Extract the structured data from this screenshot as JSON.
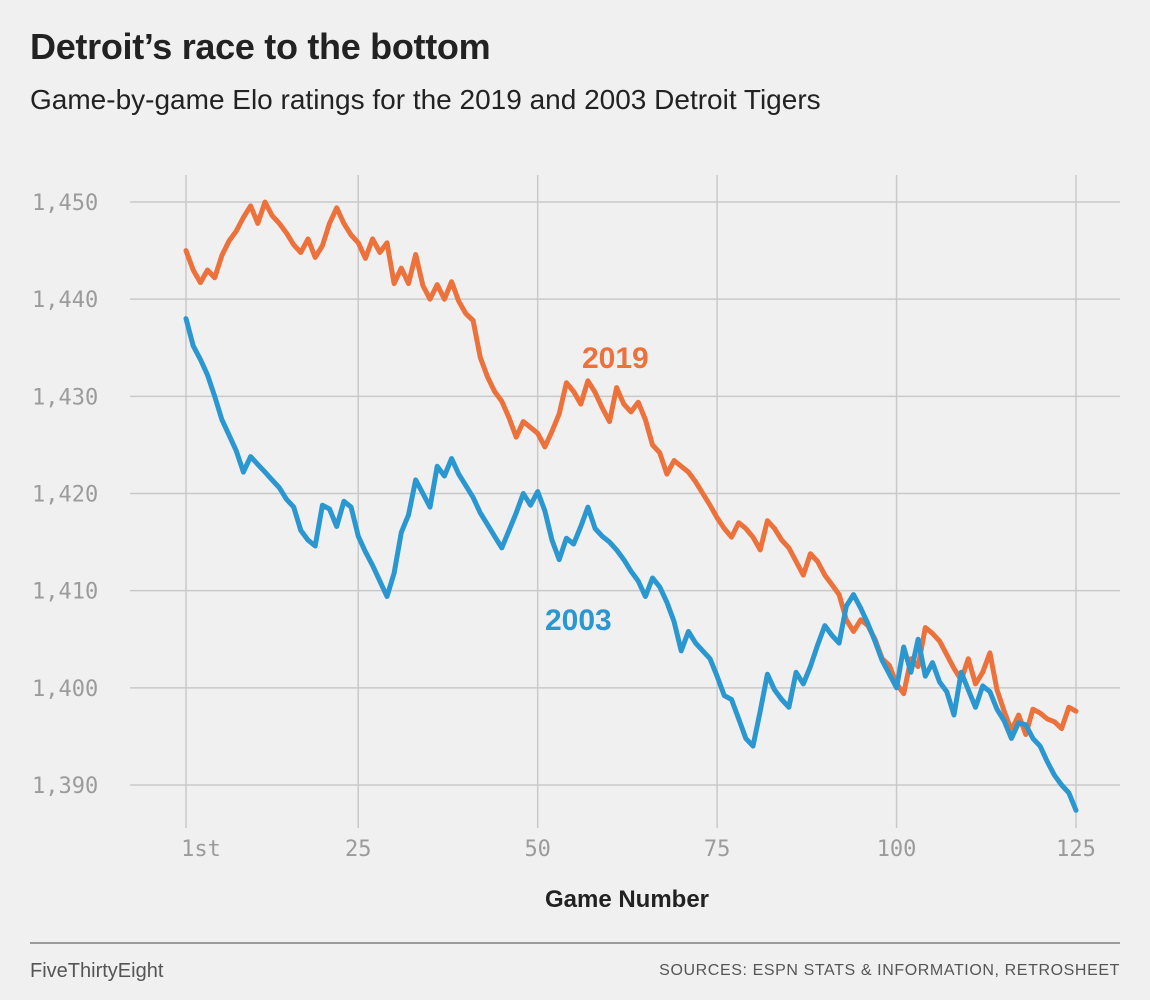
{
  "header": {
    "title": "Detroit’s race to the bottom",
    "subtitle": "Game-by-game Elo ratings for the 2019 and 2003 Detroit Tigers"
  },
  "footer": {
    "brand": "FiveThirtyEight",
    "sources": "SOURCES: ESPN STATS & INFORMATION, RETROSHEET"
  },
  "chart_data": {
    "type": "line",
    "title": "Detroit’s race to the bottom",
    "subtitle": "Game-by-game Elo ratings for the 2019 and 2003 Detroit Tigers",
    "xlabel": "Game Number",
    "ylabel": "",
    "xlim": [
      1,
      125
    ],
    "ylim": [
      1387.5,
      1453
    ],
    "x_ticks": [
      1,
      25,
      50,
      75,
      100,
      125
    ],
    "x_tick_labels": [
      "1st",
      "25",
      "50",
      "75",
      "100",
      "125"
    ],
    "y_ticks": [
      1390,
      1400,
      1410,
      1420,
      1430,
      1440,
      1450
    ],
    "y_tick_labels": [
      "1,390",
      "1,400",
      "1,410",
      "1,420",
      "1,430",
      "1,440",
      "1,450"
    ],
    "grid": true,
    "legend": "direct labels on lines",
    "series": [
      {
        "name": "2019",
        "color": "#ed713a",
        "x": [
          1,
          2,
          3,
          4,
          5,
          6,
          7,
          8,
          9,
          10,
          11,
          12,
          13,
          14,
          15,
          16,
          17,
          18,
          19,
          20,
          21,
          22,
          23,
          24,
          25,
          26,
          27,
          28,
          29,
          30,
          31,
          32,
          33,
          34,
          35,
          36,
          37,
          38,
          39,
          40,
          41,
          42,
          43,
          44,
          45,
          46,
          47,
          48,
          49,
          50,
          51,
          52,
          53,
          54,
          55,
          56,
          57,
          58,
          59,
          60,
          61,
          62,
          63,
          64,
          65,
          66,
          67,
          68,
          69,
          70,
          71,
          72,
          73,
          74,
          75,
          76,
          77,
          78,
          79,
          80,
          81,
          82,
          83,
          84,
          85,
          86,
          87,
          88,
          89,
          90,
          91,
          92,
          93,
          94,
          95,
          96,
          97,
          98,
          99,
          100,
          101,
          102,
          103,
          104,
          105,
          106,
          107,
          108,
          109,
          110,
          111,
          112,
          113,
          114,
          115,
          116,
          117,
          118,
          119,
          120,
          121,
          122,
          123,
          124,
          125
        ],
        "values": [
          1445,
          1443,
          1441.7,
          1443,
          1442.2,
          1444.5,
          1446,
          1447,
          1448.4,
          1449.6,
          1447.8,
          1450,
          1448.6,
          1447.8,
          1446.8,
          1445.6,
          1444.8,
          1446.2,
          1444.3,
          1445.5,
          1447.8,
          1449.4,
          1447.8,
          1446.6,
          1445.8,
          1444.2,
          1446.2,
          1444.8,
          1445.8,
          1441.6,
          1443.2,
          1441.6,
          1444.6,
          1441.4,
          1440,
          1441.5,
          1440,
          1441.8,
          1439.8,
          1438.5,
          1437.8,
          1434,
          1432,
          1430.5,
          1429.5,
          1427.8,
          1425.8,
          1427.4,
          1426.8,
          1426.2,
          1424.8,
          1426.4,
          1428.2,
          1431.4,
          1430.5,
          1429.2,
          1431.6,
          1430.4,
          1428.8,
          1427.4,
          1430.9,
          1429.2,
          1428.4,
          1429.4,
          1427.6,
          1425,
          1424.2,
          1422,
          1423.4,
          1422.8,
          1422.2,
          1421.2,
          1420,
          1418.8,
          1417.5,
          1416.4,
          1415.5,
          1417,
          1416.4,
          1415.5,
          1414.2,
          1417.2,
          1416.4,
          1415.2,
          1414.4,
          1413,
          1411.6,
          1413.8,
          1413,
          1411.6,
          1410.6,
          1409.6,
          1407,
          1405.8,
          1407,
          1406.4,
          1405,
          1403,
          1402.3,
          1400.4,
          1399.4,
          1403,
          1402.2,
          1406.2,
          1405.6,
          1404.8,
          1403.4,
          1402,
          1400.8,
          1403,
          1400.4,
          1401.6,
          1403.6,
          1399.8,
          1397.6,
          1395.6,
          1397.2,
          1395.2,
          1397.8,
          1397.4,
          1396.8,
          1396.5,
          1395.8,
          1398,
          1397.6
        ]
      },
      {
        "name": "2003",
        "color": "#2b97d1",
        "x": [
          1,
          2,
          3,
          4,
          5,
          6,
          7,
          8,
          9,
          10,
          11,
          12,
          13,
          14,
          15,
          16,
          17,
          18,
          19,
          20,
          21,
          22,
          23,
          24,
          25,
          26,
          27,
          28,
          29,
          30,
          31,
          32,
          33,
          34,
          35,
          36,
          37,
          38,
          39,
          40,
          41,
          42,
          43,
          44,
          45,
          46,
          47,
          48,
          49,
          50,
          51,
          52,
          53,
          54,
          55,
          56,
          57,
          58,
          59,
          60,
          61,
          62,
          63,
          64,
          65,
          66,
          67,
          68,
          69,
          70,
          71,
          72,
          73,
          74,
          75,
          76,
          77,
          78,
          79,
          80,
          81,
          82,
          83,
          84,
          85,
          86,
          87,
          88,
          89,
          90,
          91,
          92,
          93,
          94,
          95,
          96,
          97,
          98,
          99,
          100,
          101,
          102,
          103,
          104,
          105,
          106,
          107,
          108,
          109,
          110,
          111,
          112,
          113,
          114,
          115,
          116,
          117,
          118,
          119,
          120,
          121,
          122,
          123,
          124,
          125
        ],
        "values": [
          1438,
          1435.2,
          1433.8,
          1432.2,
          1430,
          1427.6,
          1426,
          1424.4,
          1422.2,
          1423.8,
          1423,
          1422.2,
          1421.4,
          1420.6,
          1419.4,
          1418.6,
          1416.2,
          1415.2,
          1414.6,
          1418.8,
          1418.4,
          1416.6,
          1419.2,
          1418.6,
          1415.6,
          1414,
          1412.6,
          1411,
          1409.4,
          1411.8,
          1416,
          1417.8,
          1421.4,
          1420,
          1418.6,
          1422.8,
          1421.8,
          1423.6,
          1422,
          1420.8,
          1419.6,
          1418,
          1416.8,
          1415.6,
          1414.4,
          1416.2,
          1418,
          1420,
          1418.8,
          1420.2,
          1418.2,
          1415.2,
          1413.2,
          1415.4,
          1414.8,
          1416.6,
          1418.6,
          1416.4,
          1415.6,
          1415,
          1414.2,
          1413.2,
          1412,
          1411,
          1409.4,
          1411.3,
          1410.4,
          1408.8,
          1406.8,
          1403.8,
          1405.8,
          1404.6,
          1403.8,
          1403,
          1401.2,
          1399.2,
          1398.8,
          1396.8,
          1394.8,
          1394,
          1397.6,
          1401.4,
          1399.8,
          1398.8,
          1398,
          1401.6,
          1400.4,
          1402.2,
          1404.4,
          1406.4,
          1405.4,
          1404.6,
          1408.4,
          1409.6,
          1408.2,
          1406.6,
          1404.8,
          1402.8,
          1401.4,
          1400,
          1404.2,
          1401.6,
          1405,
          1401.2,
          1402.6,
          1400.6,
          1399.6,
          1397.2,
          1401.6,
          1399.8,
          1398,
          1400.2,
          1399.6,
          1397.8,
          1396.6,
          1394.8,
          1396.4,
          1396.2,
          1394.8,
          1394,
          1392.4,
          1391,
          1390,
          1389.2,
          1387.4
        ]
      }
    ],
    "annotations": [
      {
        "text": "2019",
        "color": "#ed713a"
      },
      {
        "text": "2003",
        "color": "#2b97d1"
      }
    ]
  }
}
